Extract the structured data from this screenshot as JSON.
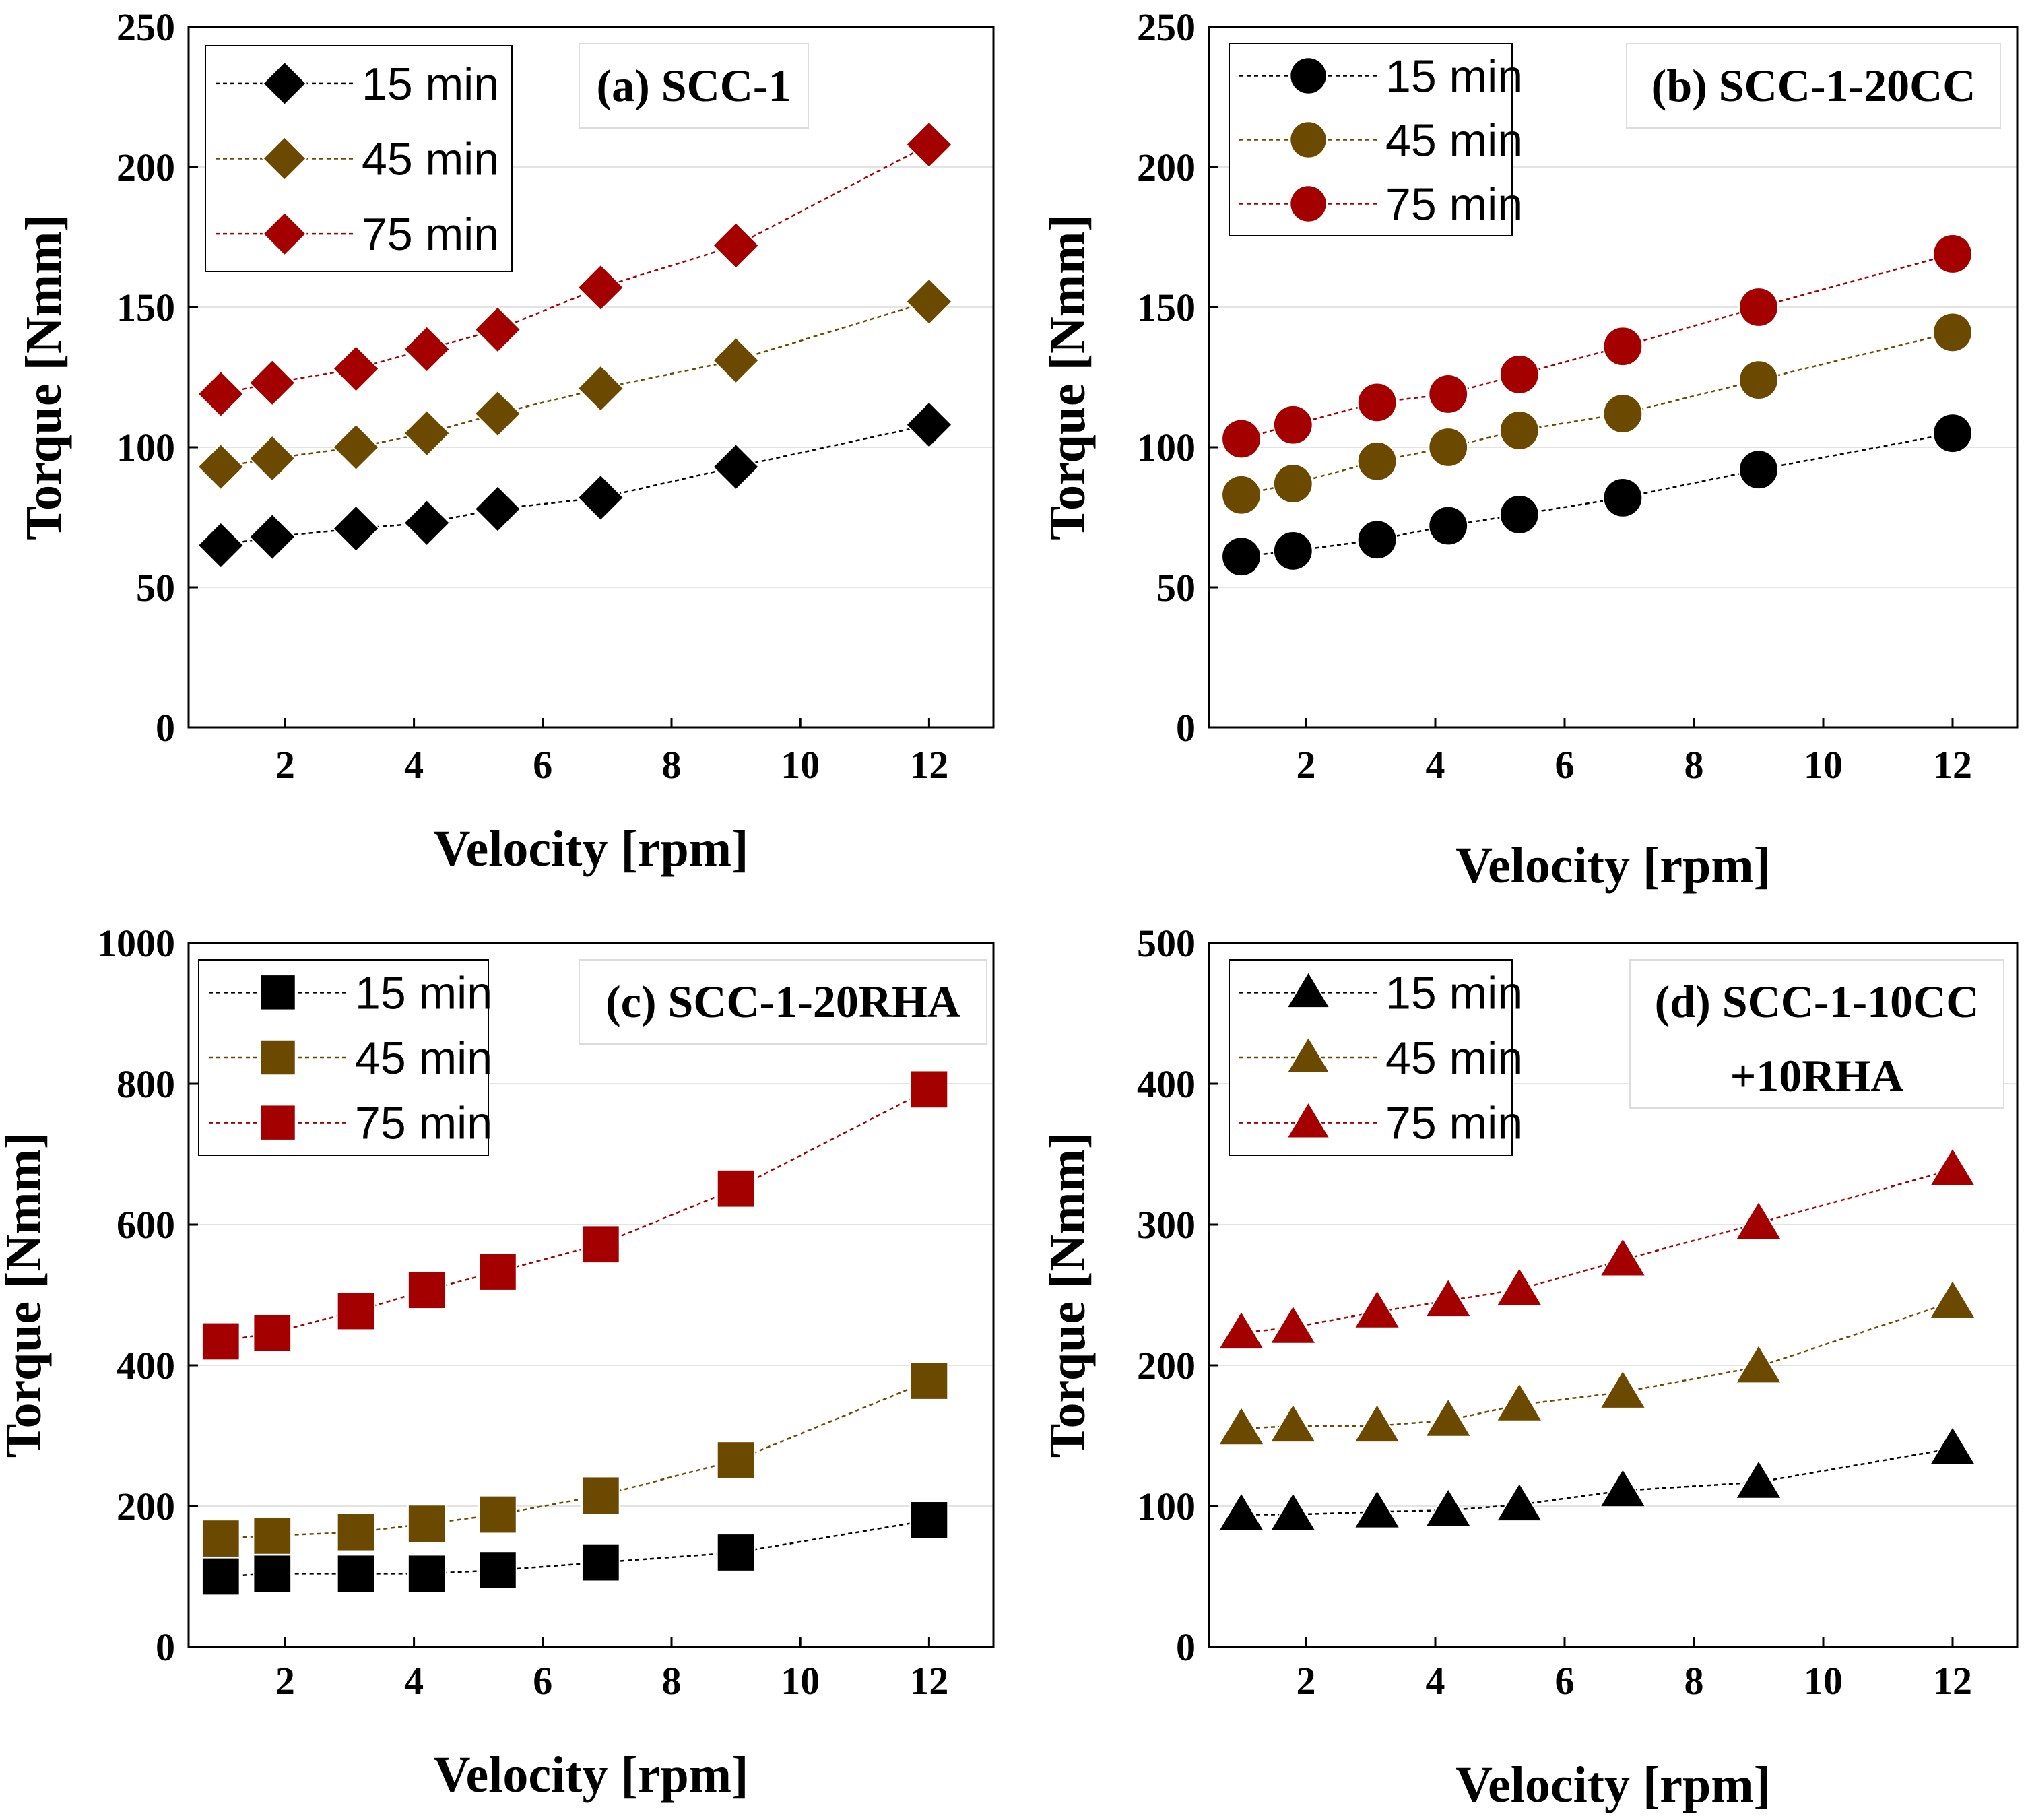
{
  "chart_data": [
    {
      "id": "a",
      "type": "line",
      "marker": "diamond",
      "title": "(a) SCC-1",
      "xlabel": "Velocity [rpm]",
      "ylabel": "Torque [Nmm]",
      "xlim": [
        0.5,
        13
      ],
      "ylim": [
        0,
        250
      ],
      "xticks": [
        2,
        4,
        6,
        8,
        10,
        12
      ],
      "yticks": [
        0,
        50,
        100,
        150,
        200,
        250
      ],
      "legend_position": "top-left",
      "x": [
        1,
        1.8,
        3.1,
        4.2,
        5.3,
        6.9,
        9,
        12
      ],
      "series": [
        {
          "name": "15 min",
          "color": "#000000",
          "values": [
            65,
            68,
            71,
            73,
            78,
            82,
            93,
            108
          ]
        },
        {
          "name": "45 min",
          "color": "#6b4a00",
          "values": [
            93,
            96,
            100,
            105,
            112,
            121,
            131,
            152
          ]
        },
        {
          "name": "75 min",
          "color": "#a50000",
          "values": [
            119,
            123,
            128,
            135,
            142,
            157,
            172,
            208
          ]
        }
      ]
    },
    {
      "id": "b",
      "type": "line",
      "marker": "circle",
      "title": "(b) SCC-1-20CC",
      "xlabel": "Velocity [rpm]",
      "ylabel": "Torque [Nmm]",
      "xlim": [
        0.5,
        13
      ],
      "ylim": [
        0,
        250
      ],
      "xticks": [
        2,
        4,
        6,
        8,
        10,
        12
      ],
      "yticks": [
        0,
        50,
        100,
        150,
        200,
        250
      ],
      "legend_position": "top-left",
      "x": [
        1,
        1.8,
        3.1,
        4.2,
        5.3,
        6.9,
        9,
        12
      ],
      "series": [
        {
          "name": "15 min",
          "color": "#000000",
          "values": [
            61,
            63,
            67,
            72,
            76,
            82,
            92,
            105
          ]
        },
        {
          "name": "45 min",
          "color": "#6b4a00",
          "values": [
            83,
            87,
            95,
            100,
            106,
            112,
            124,
            141
          ]
        },
        {
          "name": "75 min",
          "color": "#a50000",
          "values": [
            103,
            108,
            116,
            119,
            126,
            136,
            150,
            169
          ]
        }
      ]
    },
    {
      "id": "c",
      "type": "line",
      "marker": "square",
      "title": "(c) SCC-1-20RHA",
      "xlabel": "Velocity [rpm]",
      "ylabel": "Torque [Nmm]",
      "xlim": [
        0.5,
        13
      ],
      "ylim": [
        0,
        1000
      ],
      "xticks": [
        2,
        4,
        6,
        8,
        10,
        12
      ],
      "yticks": [
        0,
        200,
        400,
        600,
        800,
        1000
      ],
      "legend_position": "top-left",
      "x": [
        1,
        1.8,
        3.1,
        4.2,
        5.3,
        6.9,
        9,
        12
      ],
      "series": [
        {
          "name": "15 min",
          "color": "#000000",
          "values": [
            100,
            104,
            104,
            104,
            109,
            120,
            134,
            180
          ]
        },
        {
          "name": "45 min",
          "color": "#6b4a00",
          "values": [
            154,
            158,
            163,
            175,
            188,
            215,
            265,
            378
          ]
        },
        {
          "name": "75 min",
          "color": "#a50000",
          "values": [
            434,
            446,
            477,
            507,
            533,
            572,
            651,
            792
          ]
        }
      ]
    },
    {
      "id": "d",
      "type": "line",
      "marker": "triangle",
      "title": [
        "(d) SCC-1-10CC",
        "+10RHA"
      ],
      "xlabel": "Velocity [rpm]",
      "ylabel": "Torque [Nmm]",
      "xlim": [
        0.5,
        13
      ],
      "ylim": [
        0,
        500
      ],
      "xticks": [
        2,
        4,
        6,
        8,
        10,
        12
      ],
      "yticks": [
        0,
        100,
        200,
        300,
        400,
        500
      ],
      "legend_position": "top-left",
      "x": [
        1,
        1.8,
        3.1,
        4.2,
        5.3,
        6.9,
        9,
        12
      ],
      "series": [
        {
          "name": "15 min",
          "color": "#000000",
          "values": [
            94,
            94,
            96,
            97,
            101,
            111,
            117,
            141
          ]
        },
        {
          "name": "45 min",
          "color": "#6b4a00",
          "values": [
            155,
            157,
            157,
            161,
            172,
            181,
            199,
            245
          ]
        },
        {
          "name": "75 min",
          "color": "#a50000",
          "values": [
            223,
            227,
            238,
            246,
            254,
            275,
            301,
            339
          ]
        }
      ]
    }
  ]
}
